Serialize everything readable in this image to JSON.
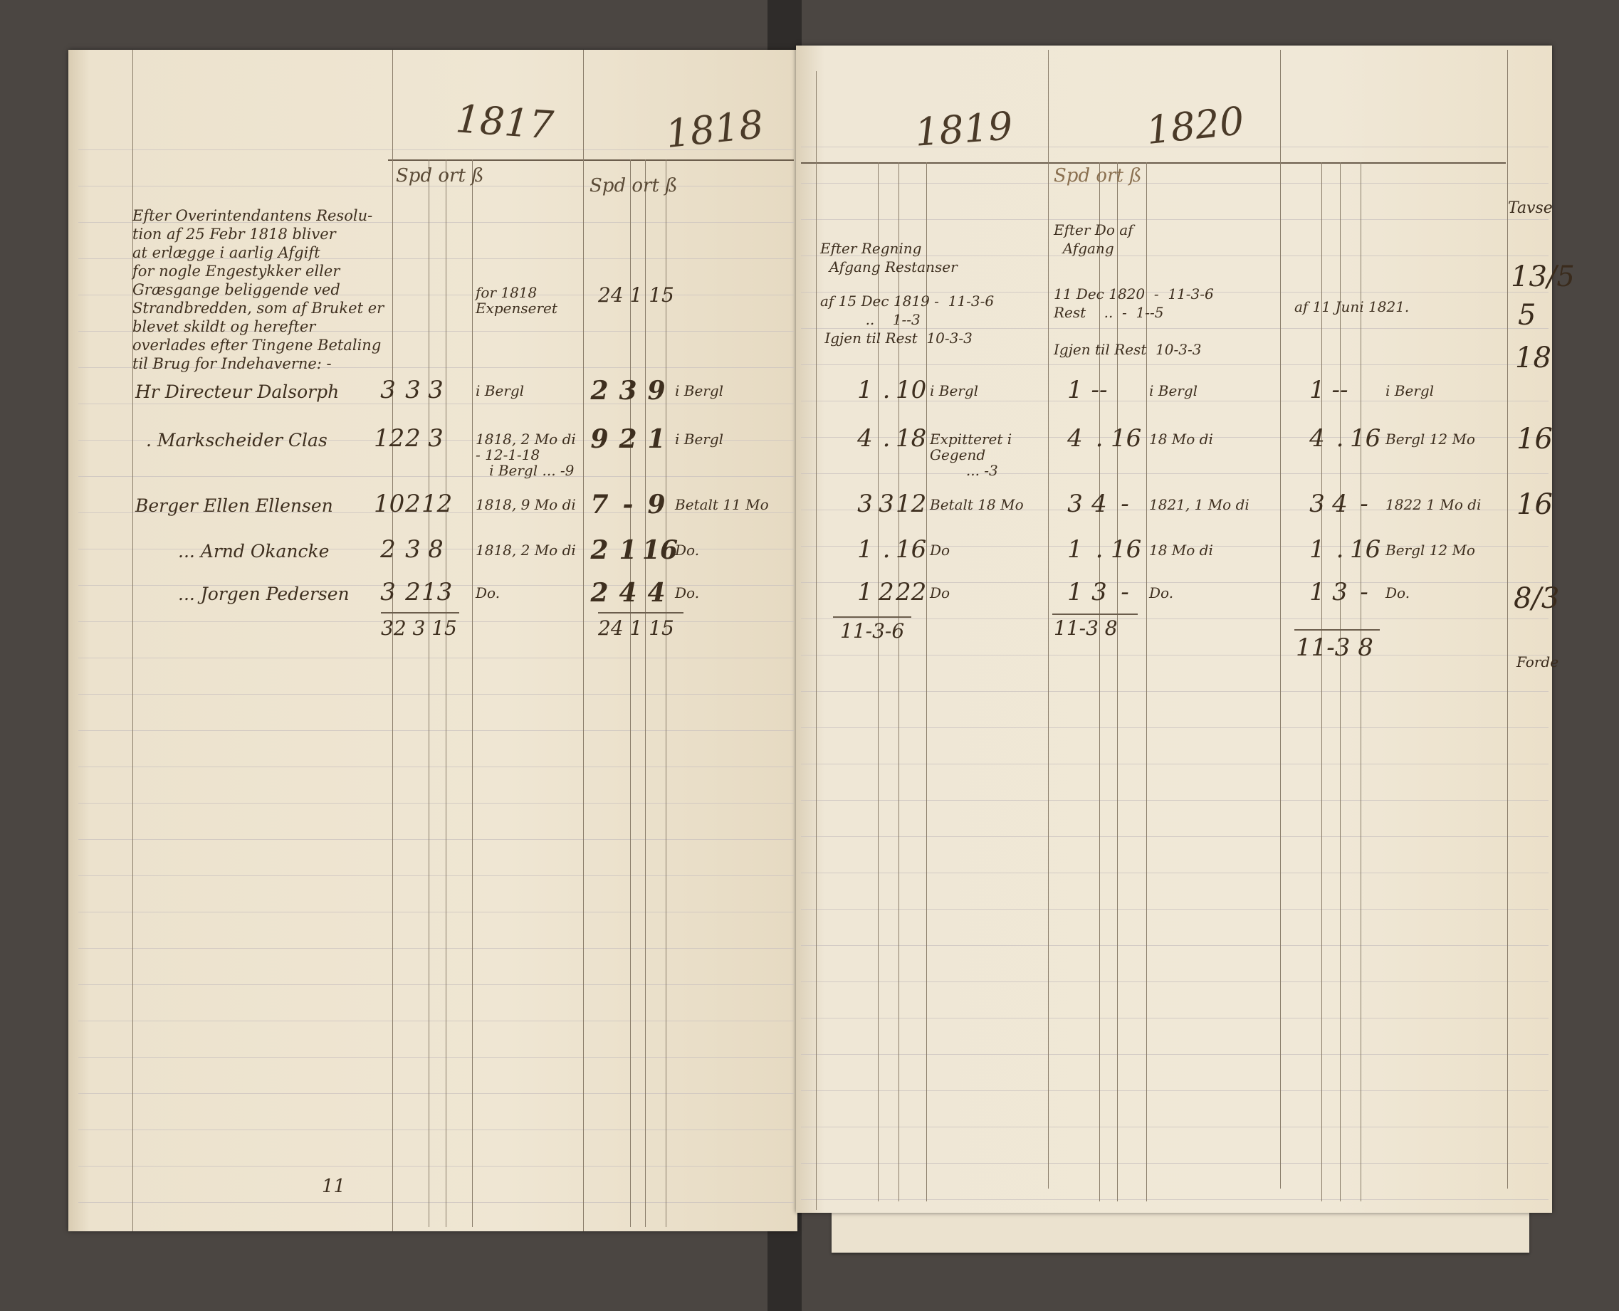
{
  "years": [
    "1817",
    "1818",
    "1819",
    "1820"
  ],
  "column_headers": {
    "c1817": "Spd ort ß",
    "c1818": "Spd ort ß",
    "c1820": "Spd ort ß"
  },
  "paragraph": "Efter Overintendantens Resolu-\ntion af 25 Febr 1818 bliver\nat erlægge i aarlig Afgift\nfor nogle Engestykker eller\nGræsgange beliggende ved\nStrandbredden, som af Bruket er\nblevet skildt og herefter\noverlades efter Tingene Betaling\ntil Brug for Indehaverne: -",
  "rows": [
    {
      "name": "Hr Directeur Dalsorph",
      "y1817": [
        "3",
        "3",
        "3"
      ],
      "n1817": "i Bergl",
      "y1818": [
        "2",
        "3",
        "9"
      ],
      "n1818": "i Bergl",
      "y1819": [
        "1",
        ".",
        "10"
      ],
      "n1819": "i Bergl",
      "y1820": [
        "1",
        "--",
        ""
      ],
      "n1820": "i Bergl",
      "y1821": [
        "1",
        "--",
        ""
      ],
      "n1821": "i Bergl"
    },
    {
      "name": ". Markscheider Clas",
      "y1817": [
        "12",
        "2",
        "3"
      ],
      "n1817": "1818, 2 Mo di - 12-1-18\n   i Bergl ... -9",
      "y1818": [
        "9",
        "2",
        "1"
      ],
      "n1818": "i Bergl",
      "y1819": [
        "4",
        ".",
        "18"
      ],
      "n1819": "Expitteret i Gegend\n        ... -3",
      "y1820": [
        "4",
        ".",
        "16"
      ],
      "n1820": "18 Mo di",
      "y1821": [
        "4",
        ".",
        "16"
      ],
      "n1821": "Bergl 12 Mo"
    },
    {
      "name": "Berger Ellen Ellensen",
      "y1817": [
        "10",
        "2",
        "12"
      ],
      "n1817": "1818, 9 Mo di",
      "y1818": [
        "7",
        "-",
        "9"
      ],
      "n1818": "Betalt 11 Mo",
      "y1819": [
        "3",
        "3",
        "12"
      ],
      "n1819": "Betalt 18 Mo",
      "y1820": [
        "3",
        "4",
        "-"
      ],
      "n1820": "1821, 1 Mo di",
      "y1821": [
        "3",
        "4",
        "-"
      ],
      "n1821": "1822 1 Mo di"
    },
    {
      "name": "... Arnd Okancke",
      "y1817": [
        "2",
        "3",
        "8"
      ],
      "n1817": "1818, 2 Mo di",
      "y1818": [
        "2",
        "1",
        "16"
      ],
      "n1818": "Do.",
      "y1819": [
        "1",
        ".",
        "16"
      ],
      "n1819": "Do",
      "y1820": [
        "1",
        ".",
        "16"
      ],
      "n1820": "18 Mo di",
      "y1821": [
        "1",
        ".",
        "16"
      ],
      "n1821": "Bergl 12 Mo"
    },
    {
      "name": "... Jorgen Pedersen",
      "y1817": [
        "3",
        "2",
        "13"
      ],
      "n1817": "Do.",
      "y1818": [
        "2",
        "4",
        "4"
      ],
      "n1818": "Do.",
      "y1819": [
        "1",
        "2",
        "22"
      ],
      "n1819": "Do",
      "y1820": [
        "1",
        "3",
        "-"
      ],
      "n1820": "Do.",
      "y1821": [
        "1",
        "3",
        "-"
      ],
      "n1821": "Do."
    }
  ],
  "totals": {
    "t1817": "32  3  15",
    "t1818": "24  1  15",
    "t1819": "11-3-6",
    "t1820": "11-3 8",
    "t1821": "11-3 8"
  },
  "notes": {
    "n1818_carry": "for 1818 Expenseret",
    "n1818_carry_value": "24  1  15",
    "n1819_head": "Efter Regning\n  Afgang Restanser",
    "n1819_date": "af 15 Dec 1819 -  11-3-6\n          ..    1--3\n Igjen til Rest  10-3-3",
    "n1820_head": "Efter Do af\n  Afgang",
    "n1820_date": "11 Dec 1820  -  11-3-6\nRest    ..  -  1--5\n\nIgjen til Rest  10-3-3",
    "n1821_date": "af 11 Juni 1821."
  },
  "margin_right": [
    "Tavse",
    "13/5",
    "5",
    "18",
    "16",
    "16",
    "8/3",
    "Forde"
  ],
  "stray_marks": [
    "11"
  ],
  "ink_color": "#3e2f1f",
  "paper_color": "#ede3cf"
}
